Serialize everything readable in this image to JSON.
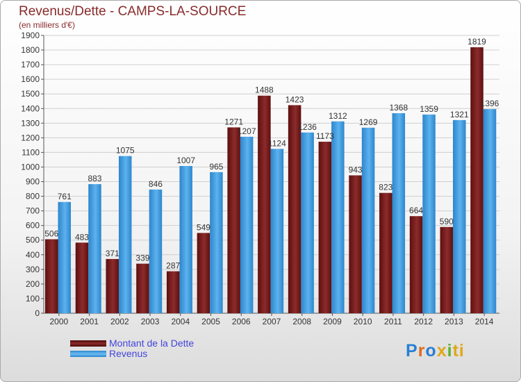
{
  "chart_data": {
    "type": "bar",
    "title": "Revenus/Dette - CAMPS-LA-SOURCE",
    "subtitle": "(en milliers d'€)",
    "categories": [
      "2000",
      "2001",
      "2002",
      "2003",
      "2004",
      "2005",
      "2006",
      "2007",
      "2008",
      "2009",
      "2010",
      "2011",
      "2012",
      "2013",
      "2014"
    ],
    "series": [
      {
        "name": "Montant de la Dette",
        "color": "#7a1f1f",
        "values": [
          506,
          483,
          371,
          339,
          287,
          549,
          1271,
          1488,
          1423,
          1173,
          943,
          823,
          664,
          590,
          1819
        ]
      },
      {
        "name": "Revenus",
        "color": "#4aa3e6",
        "values": [
          761,
          883,
          1075,
          846,
          1007,
          965,
          1207,
          1124,
          1236,
          1312,
          1269,
          1368,
          1359,
          1321,
          1396
        ]
      }
    ],
    "ylim": [
      0,
      1900
    ],
    "ytick_step": 100,
    "grid": true,
    "legend_position": "bottom-left"
  },
  "logo": {
    "letters": [
      "P",
      "r",
      "o",
      "x",
      "i",
      "ti"
    ]
  }
}
